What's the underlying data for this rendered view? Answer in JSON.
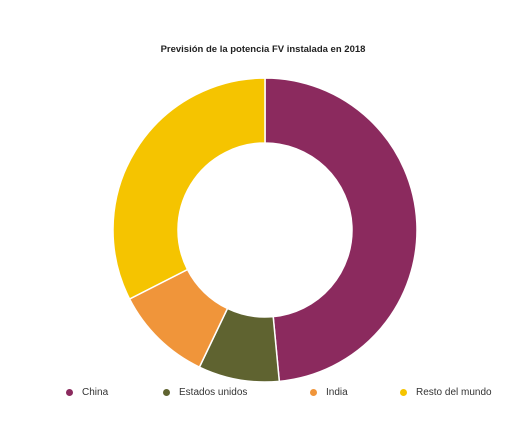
{
  "chart_data": {
    "type": "pie",
    "variant": "donut",
    "title": "Previsión de la potencia FV instalada en 2018",
    "categories": [
      "China",
      "Estados unidos",
      "India",
      "Resto del mundo"
    ],
    "values": [
      48.5,
      8.6,
      10.4,
      32.5
    ],
    "unit": "%",
    "colors": [
      "#8b2a5e",
      "#5f6330",
      "#f0953a",
      "#f5c400"
    ],
    "legend": "bottom",
    "start_angle_deg": 0,
    "direction": "clockwise"
  }
}
